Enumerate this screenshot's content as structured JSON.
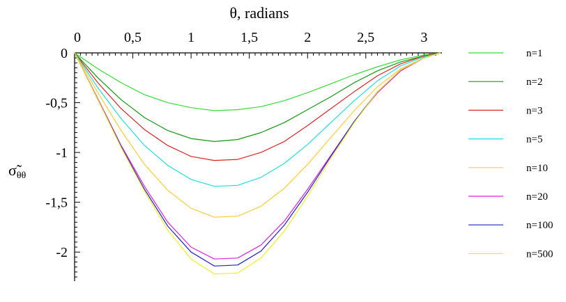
{
  "chart_data": {
    "type": "line",
    "xlabel": "θ, radians",
    "ylabel": {
      "main": "σ̃",
      "subscript": "θθ"
    },
    "xlim": [
      0,
      3.1416
    ],
    "ylim": [
      -2.25,
      0
    ],
    "x_ticks": [
      {
        "value": 0,
        "label": "0"
      },
      {
        "value": 0.5,
        "label": "0,5"
      },
      {
        "value": 1,
        "label": "1"
      },
      {
        "value": 1.5,
        "label": "1,5"
      },
      {
        "value": 2,
        "label": "2"
      },
      {
        "value": 2.5,
        "label": "2,5"
      },
      {
        "value": 3,
        "label": "3"
      }
    ],
    "y_ticks": [
      {
        "value": 0,
        "label": "0"
      },
      {
        "value": -0.5,
        "label": "-0,5"
      },
      {
        "value": -1,
        "label": "-1"
      },
      {
        "value": -1.5,
        "label": "-1,5"
      },
      {
        "value": -2,
        "label": "-2"
      }
    ],
    "legend_position": "right",
    "grid": false,
    "x": [
      0,
      0.2,
      0.4,
      0.6,
      0.8,
      1.0,
      1.2,
      1.4,
      1.6,
      1.8,
      2.0,
      2.2,
      2.4,
      2.6,
      2.8,
      3.0,
      3.1416
    ],
    "series": [
      {
        "name": "n=1",
        "color": "#33dd33",
        "values": [
          0,
          -0.16,
          -0.3,
          -0.42,
          -0.5,
          -0.55,
          -0.58,
          -0.57,
          -0.54,
          -0.48,
          -0.4,
          -0.31,
          -0.22,
          -0.14,
          -0.07,
          -0.02,
          0
        ]
      },
      {
        "name": "n=2",
        "color": "#119911",
        "values": [
          0,
          -0.25,
          -0.47,
          -0.65,
          -0.78,
          -0.86,
          -0.89,
          -0.87,
          -0.8,
          -0.7,
          -0.57,
          -0.44,
          -0.3,
          -0.18,
          -0.09,
          -0.03,
          0
        ]
      },
      {
        "name": "n=3",
        "color": "#dd2222",
        "values": [
          0,
          -0.3,
          -0.56,
          -0.77,
          -0.93,
          -1.04,
          -1.08,
          -1.07,
          -1.0,
          -0.89,
          -0.73,
          -0.56,
          -0.39,
          -0.23,
          -0.11,
          -0.03,
          0
        ]
      },
      {
        "name": "n=5",
        "color": "#22dddd",
        "values": [
          0,
          -0.35,
          -0.66,
          -0.93,
          -1.13,
          -1.27,
          -1.34,
          -1.33,
          -1.25,
          -1.11,
          -0.92,
          -0.7,
          -0.48,
          -0.28,
          -0.13,
          -0.04,
          0
        ]
      },
      {
        "name": "n=10",
        "color": "#ffcc33",
        "values": [
          0,
          -0.4,
          -0.78,
          -1.12,
          -1.38,
          -1.56,
          -1.65,
          -1.64,
          -1.54,
          -1.36,
          -1.12,
          -0.85,
          -0.58,
          -0.34,
          -0.16,
          -0.05,
          0
        ]
      },
      {
        "name": "n=20",
        "color": "#dd22dd",
        "values": [
          0,
          -0.46,
          -0.93,
          -1.34,
          -1.7,
          -1.95,
          -2.07,
          -2.06,
          -1.93,
          -1.69,
          -1.37,
          -1.03,
          -0.69,
          -0.4,
          -0.18,
          -0.05,
          0
        ]
      },
      {
        "name": "n=100",
        "color": "#2222cc",
        "values": [
          0,
          -0.47,
          -0.94,
          -1.37,
          -1.74,
          -2.0,
          -2.14,
          -2.13,
          -1.99,
          -1.73,
          -1.4,
          -1.04,
          -0.69,
          -0.39,
          -0.17,
          -0.05,
          0
        ]
      },
      {
        "name": "n=500",
        "color": "#eeee22",
        "values": [
          0,
          -0.47,
          -0.95,
          -1.39,
          -1.78,
          -2.07,
          -2.22,
          -2.21,
          -2.06,
          -1.79,
          -1.44,
          -1.06,
          -0.7,
          -0.39,
          -0.17,
          -0.05,
          0
        ]
      }
    ]
  }
}
